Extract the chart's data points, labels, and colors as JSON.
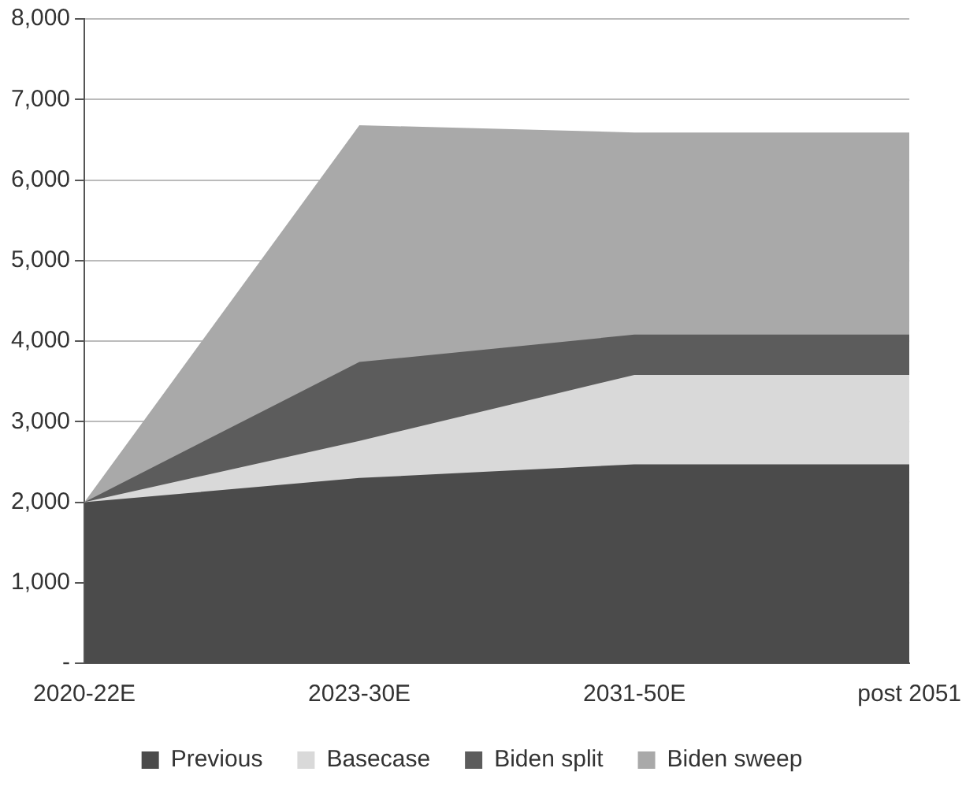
{
  "chart_data": {
    "type": "area",
    "categories": [
      "2020-22E",
      "2023-30E",
      "2031-50E",
      "post 2051"
    ],
    "series": [
      {
        "name": "Previous",
        "color": "#4b4b4b",
        "values": [
          2000,
          2300,
          2470,
          2470
        ]
      },
      {
        "name": "Basecase",
        "color": "#d9d9d9",
        "values": [
          2000,
          2760,
          3580,
          3580
        ]
      },
      {
        "name": "Biden split",
        "color": "#5c5c5c",
        "values": [
          2000,
          3740,
          4080,
          4080
        ]
      },
      {
        "name": "Biden sweep",
        "color": "#a9a9a9",
        "values": [
          2000,
          6680,
          6590,
          6590
        ]
      }
    ],
    "ylim": [
      0,
      8000
    ],
    "yticks": [
      {
        "value": 0,
        "label": "-"
      },
      {
        "value": 1000,
        "label": "1,000"
      },
      {
        "value": 2000,
        "label": "2,000"
      },
      {
        "value": 3000,
        "label": "3,000"
      },
      {
        "value": 4000,
        "label": "4,000"
      },
      {
        "value": 5000,
        "label": "5,000"
      },
      {
        "value": 6000,
        "label": "6,000"
      },
      {
        "value": 7000,
        "label": "7,000"
      },
      {
        "value": 8000,
        "label": "8,000"
      }
    ],
    "grid": "y",
    "legend": "bottom"
  }
}
